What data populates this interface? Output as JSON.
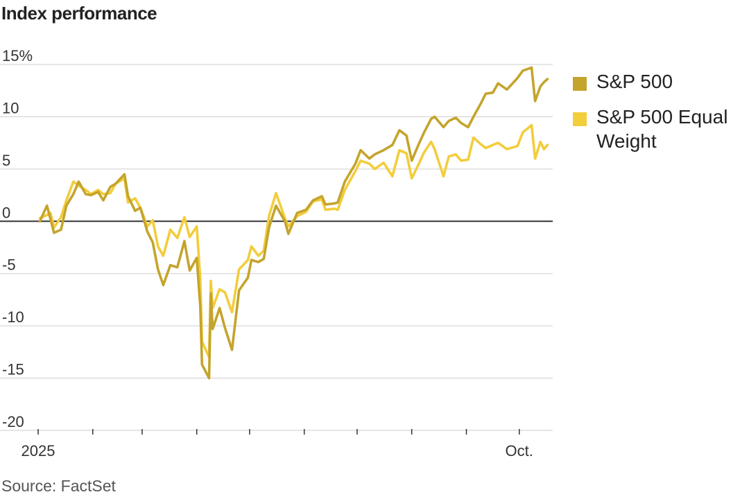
{
  "title": "Index performance",
  "source": "Source: FactSet",
  "chart_data": {
    "type": "line",
    "title": "Index performance",
    "xlabel": "",
    "ylabel": "",
    "ylim": [
      -20,
      15
    ],
    "yticks": [
      15,
      10,
      5,
      0,
      -5,
      -10,
      -15,
      -20
    ],
    "ytick_labels": [
      "15%",
      "10",
      "5",
      "0",
      "-5",
      "-10",
      "-15",
      "-20"
    ],
    "xlim": [
      "2025-01-01",
      "2025-10-20"
    ],
    "xticks": [
      "2025-01-01",
      "2025-02-01",
      "2025-03-01",
      "2025-04-01",
      "2025-05-01",
      "2025-06-01",
      "2025-07-01",
      "2025-08-01",
      "2025-09-01",
      "2025-10-01"
    ],
    "xtick_labels": [
      "2025",
      "",
      "",
      "",
      "",
      "",
      "",
      "",
      "",
      "Oct."
    ],
    "grid": true,
    "zero_line": true,
    "legend_position": "right",
    "series": [
      {
        "name": "S&P 500",
        "color": "#c4a42c",
        "points": [
          [
            "2025-01-02",
            0.0
          ],
          [
            "2025-01-06",
            1.5
          ],
          [
            "2025-01-08",
            0.2
          ],
          [
            "2025-01-10",
            -1.1
          ],
          [
            "2025-01-14",
            -0.8
          ],
          [
            "2025-01-17",
            1.5
          ],
          [
            "2025-01-21",
            2.6
          ],
          [
            "2025-01-24",
            3.8
          ],
          [
            "2025-01-28",
            2.6
          ],
          [
            "2025-01-31",
            2.5
          ],
          [
            "2025-02-04",
            2.8
          ],
          [
            "2025-02-07",
            2.0
          ],
          [
            "2025-02-11",
            3.3
          ],
          [
            "2025-02-14",
            3.6
          ],
          [
            "2025-02-19",
            4.5
          ],
          [
            "2025-02-21",
            2.4
          ],
          [
            "2025-02-25",
            1.0
          ],
          [
            "2025-02-28",
            1.3
          ],
          [
            "2025-03-04",
            -1.0
          ],
          [
            "2025-03-07",
            -2.0
          ],
          [
            "2025-03-10",
            -4.6
          ],
          [
            "2025-03-13",
            -6.1
          ],
          [
            "2025-03-17",
            -4.2
          ],
          [
            "2025-03-21",
            -4.4
          ],
          [
            "2025-03-25",
            -1.9
          ],
          [
            "2025-03-28",
            -4.7
          ],
          [
            "2025-04-01",
            -3.5
          ],
          [
            "2025-04-03",
            -8.2
          ],
          [
            "2025-04-04",
            -13.7
          ],
          [
            "2025-04-08",
            -15.0
          ],
          [
            "2025-04-09",
            -6.9
          ],
          [
            "2025-04-10",
            -10.3
          ],
          [
            "2025-04-14",
            -8.3
          ],
          [
            "2025-04-17",
            -10.2
          ],
          [
            "2025-04-21",
            -12.3
          ],
          [
            "2025-04-25",
            -6.6
          ],
          [
            "2025-04-30",
            -5.4
          ],
          [
            "2025-05-02",
            -3.7
          ],
          [
            "2025-05-06",
            -3.9
          ],
          [
            "2025-05-09",
            -3.6
          ],
          [
            "2025-05-12",
            -0.6
          ],
          [
            "2025-05-16",
            1.5
          ],
          [
            "2025-05-21",
            0.0
          ],
          [
            "2025-05-23",
            -1.2
          ],
          [
            "2025-05-28",
            0.8
          ],
          [
            "2025-06-02",
            1.1
          ],
          [
            "2025-06-06",
            2.0
          ],
          [
            "2025-06-11",
            2.4
          ],
          [
            "2025-06-13",
            1.6
          ],
          [
            "2025-06-18",
            1.7
          ],
          [
            "2025-06-20",
            1.8
          ],
          [
            "2025-06-24",
            3.8
          ],
          [
            "2025-06-30",
            5.5
          ],
          [
            "2025-07-03",
            6.8
          ],
          [
            "2025-07-08",
            6.0
          ],
          [
            "2025-07-11",
            6.4
          ],
          [
            "2025-07-16",
            6.8
          ],
          [
            "2025-07-21",
            7.3
          ],
          [
            "2025-07-25",
            8.7
          ],
          [
            "2025-07-29",
            8.2
          ],
          [
            "2025-08-01",
            5.8
          ],
          [
            "2025-08-05",
            7.4
          ],
          [
            "2025-08-08",
            8.5
          ],
          [
            "2025-08-12",
            9.8
          ],
          [
            "2025-08-14",
            10.0
          ],
          [
            "2025-08-19",
            9.0
          ],
          [
            "2025-08-22",
            9.6
          ],
          [
            "2025-08-26",
            9.9
          ],
          [
            "2025-08-29",
            9.4
          ],
          [
            "2025-09-02",
            9.0
          ],
          [
            "2025-09-05",
            10.0
          ],
          [
            "2025-09-09",
            11.2
          ],
          [
            "2025-09-12",
            12.2
          ],
          [
            "2025-09-16",
            12.3
          ],
          [
            "2025-09-19",
            13.2
          ],
          [
            "2025-09-24",
            12.6
          ],
          [
            "2025-09-30",
            13.7
          ],
          [
            "2025-10-03",
            14.4
          ],
          [
            "2025-10-08",
            14.7
          ],
          [
            "2025-10-10",
            11.5
          ],
          [
            "2025-10-13",
            12.9
          ],
          [
            "2025-10-15",
            13.3
          ],
          [
            "2025-10-17",
            13.6
          ]
        ]
      },
      {
        "name": "S&P 500 Equal Weight",
        "color": "#f2cd3c",
        "points": [
          [
            "2025-01-02",
            0.3
          ],
          [
            "2025-01-06",
            0.6
          ],
          [
            "2025-01-08",
            0.8
          ],
          [
            "2025-01-10",
            -0.6
          ],
          [
            "2025-01-14",
            0.4
          ],
          [
            "2025-01-17",
            2.0
          ],
          [
            "2025-01-21",
            3.8
          ],
          [
            "2025-01-24",
            3.4
          ],
          [
            "2025-01-28",
            3.0
          ],
          [
            "2025-01-31",
            2.6
          ],
          [
            "2025-02-04",
            3.0
          ],
          [
            "2025-02-07",
            2.6
          ],
          [
            "2025-02-11",
            2.7
          ],
          [
            "2025-02-14",
            3.6
          ],
          [
            "2025-02-19",
            4.1
          ],
          [
            "2025-02-21",
            1.8
          ],
          [
            "2025-02-25",
            2.2
          ],
          [
            "2025-02-28",
            1.3
          ],
          [
            "2025-03-04",
            -0.5
          ],
          [
            "2025-03-07",
            0.1
          ],
          [
            "2025-03-10",
            -2.4
          ],
          [
            "2025-03-13",
            -3.3
          ],
          [
            "2025-03-17",
            -0.8
          ],
          [
            "2025-03-21",
            -1.6
          ],
          [
            "2025-03-25",
            0.4
          ],
          [
            "2025-03-28",
            -1.5
          ],
          [
            "2025-04-01",
            -0.5
          ],
          [
            "2025-04-03",
            -5.5
          ],
          [
            "2025-04-04",
            -11.5
          ],
          [
            "2025-04-08",
            -13.0
          ],
          [
            "2025-04-09",
            -5.7
          ],
          [
            "2025-04-10",
            -8.3
          ],
          [
            "2025-04-14",
            -6.5
          ],
          [
            "2025-04-17",
            -6.8
          ],
          [
            "2025-04-21",
            -8.7
          ],
          [
            "2025-04-25",
            -4.6
          ],
          [
            "2025-04-30",
            -3.7
          ],
          [
            "2025-05-02",
            -2.4
          ],
          [
            "2025-05-06",
            -3.3
          ],
          [
            "2025-05-09",
            -2.8
          ],
          [
            "2025-05-12",
            0.5
          ],
          [
            "2025-05-16",
            2.7
          ],
          [
            "2025-05-21",
            0.3
          ],
          [
            "2025-05-23",
            -0.5
          ],
          [
            "2025-05-28",
            0.5
          ],
          [
            "2025-06-02",
            0.9
          ],
          [
            "2025-06-06",
            1.9
          ],
          [
            "2025-06-11",
            2.1
          ],
          [
            "2025-06-13",
            1.1
          ],
          [
            "2025-06-18",
            1.2
          ],
          [
            "2025-06-20",
            1.1
          ],
          [
            "2025-06-24",
            3.0
          ],
          [
            "2025-06-30",
            4.8
          ],
          [
            "2025-07-03",
            5.8
          ],
          [
            "2025-07-08",
            5.5
          ],
          [
            "2025-07-11",
            5.0
          ],
          [
            "2025-07-16",
            5.6
          ],
          [
            "2025-07-21",
            4.3
          ],
          [
            "2025-07-25",
            6.8
          ],
          [
            "2025-07-29",
            6.5
          ],
          [
            "2025-08-01",
            4.1
          ],
          [
            "2025-08-05",
            5.5
          ],
          [
            "2025-08-08",
            6.6
          ],
          [
            "2025-08-12",
            7.6
          ],
          [
            "2025-08-14",
            6.9
          ],
          [
            "2025-08-19",
            4.3
          ],
          [
            "2025-08-22",
            6.2
          ],
          [
            "2025-08-26",
            6.4
          ],
          [
            "2025-08-29",
            5.8
          ],
          [
            "2025-09-02",
            5.9
          ],
          [
            "2025-09-05",
            8.0
          ],
          [
            "2025-09-09",
            7.4
          ],
          [
            "2025-09-12",
            7.0
          ],
          [
            "2025-09-16",
            7.3
          ],
          [
            "2025-09-19",
            7.5
          ],
          [
            "2025-09-24",
            6.9
          ],
          [
            "2025-09-30",
            7.2
          ],
          [
            "2025-10-03",
            8.5
          ],
          [
            "2025-10-08",
            9.2
          ],
          [
            "2025-10-10",
            6.0
          ],
          [
            "2025-10-13",
            7.6
          ],
          [
            "2025-10-15",
            6.9
          ],
          [
            "2025-10-17",
            7.3
          ]
        ]
      }
    ]
  }
}
